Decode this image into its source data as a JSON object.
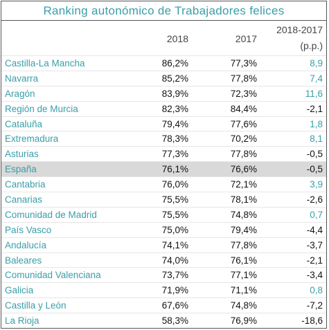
{
  "header": {
    "title": "Ranking autonómico de Trabajadores felices"
  },
  "table": {
    "columns": [
      "2018",
      "2017",
      "2018-2017",
      "(p.p.)"
    ],
    "rows": [
      [
        "Castilla-La Mancha",
        "86,2%",
        "77,3%",
        "8,9"
      ],
      [
        "Navarra",
        "85,2%",
        "77,8%",
        "7,4"
      ],
      [
        "Aragón",
        "83,9%",
        "72,3%",
        "11,6"
      ],
      [
        "Región de Murcia",
        "82,3%",
        "84,4%",
        "-2,1"
      ],
      [
        "Cataluña",
        "79,4%",
        "77,6%",
        "1,8"
      ],
      [
        "Extremadura",
        "78,3%",
        "70,2%",
        "8,1"
      ],
      [
        "Asturias",
        "77,3%",
        "77,8%",
        "-0,5"
      ],
      [
        "España",
        "76,1%",
        "76,6%",
        "-0,5"
      ],
      [
        "Cantabria",
        "76,0%",
        "72,1%",
        "3,9"
      ],
      [
        "Canarias",
        "75,5%",
        "78,1%",
        "-2,6"
      ],
      [
        "Comunidad de Madrid",
        "75,5%",
        "74,8%",
        "0,7"
      ],
      [
        "País Vasco",
        "75,0%",
        "79,4%",
        "-4,4"
      ],
      [
        "Andalucía",
        "74,1%",
        "77,8%",
        "-3,7"
      ],
      [
        "Baleares",
        "74,0%",
        "76,1%",
        "-2,1"
      ],
      [
        "Comunidad Valenciana",
        "73,7%",
        "77,1%",
        "-3,4"
      ],
      [
        "Galicia",
        "71,9%",
        "71,1%",
        "0,8"
      ],
      [
        "Castilla y León",
        "67,6%",
        "74,8%",
        "-7,2"
      ],
      [
        "La Rioja",
        "58,3%",
        "76,9%",
        "-18,6"
      ]
    ]
  }
}
